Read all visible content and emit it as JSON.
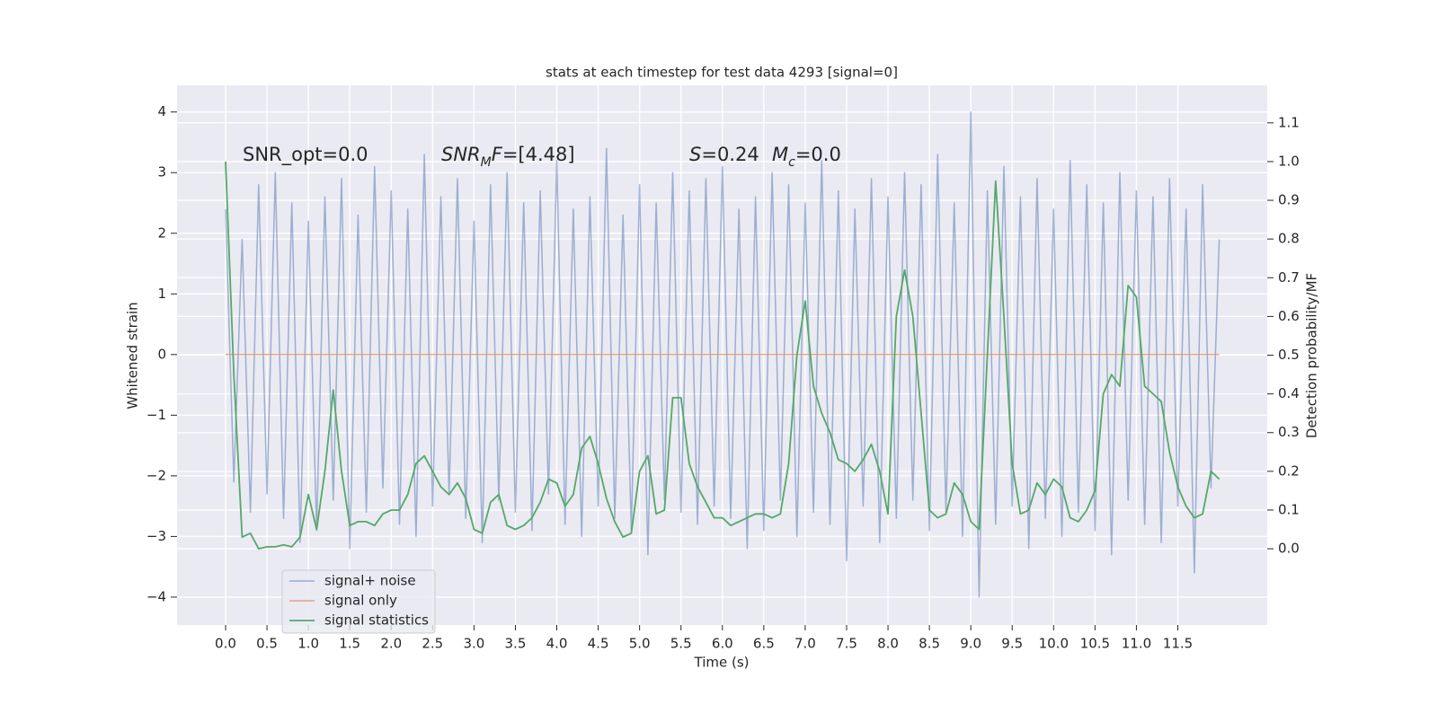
{
  "chart_data": {
    "type": "line",
    "title": "stats at each timestep for test data 4293 [signal=0]",
    "xlabel": "Time (s)",
    "ylabel": "Whitened strain",
    "y2label": "Detection probability/MF",
    "annotations": [
      [
        {
          "text": "SNR_opt=0.0"
        }
      ],
      [
        {
          "text": "SNR",
          "style": "italic"
        },
        {
          "text": "M",
          "style": "sub"
        },
        {
          "text": "F",
          "style": "italic"
        },
        {
          "text": "=[4.48]"
        }
      ],
      [
        {
          "text": "S",
          "style": "italic"
        },
        {
          "text": "=0.24"
        }
      ],
      [
        {
          "text": "M",
          "style": "italic"
        },
        {
          "text": "c",
          "style": "sub"
        },
        {
          "text": "=0.0"
        }
      ]
    ],
    "x": [
      0,
      0.1,
      0.2,
      0.3,
      0.4,
      0.5,
      0.6,
      0.7,
      0.8,
      0.9,
      1,
      1.1,
      1.2,
      1.3,
      1.4,
      1.5,
      1.6,
      1.7,
      1.8,
      1.9,
      2,
      2.1,
      2.2,
      2.3,
      2.4,
      2.5,
      2.6,
      2.7,
      2.8,
      2.9,
      3,
      3.1,
      3.2,
      3.3,
      3.4,
      3.5,
      3.6,
      3.7,
      3.8,
      3.9,
      4,
      4.1,
      4.2,
      4.3,
      4.4,
      4.5,
      4.6,
      4.7,
      4.8,
      4.9,
      5,
      5.1,
      5.2,
      5.3,
      5.4,
      5.5,
      5.6,
      5.7,
      5.8,
      5.9,
      6,
      6.1,
      6.2,
      6.3,
      6.4,
      6.5,
      6.6,
      6.7,
      6.8,
      6.9,
      7,
      7.1,
      7.2,
      7.3,
      7.4,
      7.5,
      7.6,
      7.7,
      7.8,
      7.9,
      8,
      8.1,
      8.2,
      8.3,
      8.4,
      8.5,
      8.6,
      8.7,
      8.8,
      8.9,
      9,
      9.1,
      9.2,
      9.3,
      9.4,
      9.5,
      9.6,
      9.7,
      9.8,
      9.9,
      10,
      10.1,
      10.2,
      10.3,
      10.4,
      10.5,
      10.6,
      10.7,
      10.8,
      10.9,
      11,
      11.1,
      11.2,
      11.3,
      11.4,
      11.5,
      11.6,
      11.7,
      11.8,
      11.9,
      12
    ],
    "series": [
      {
        "name": "signal+ noise",
        "color": "#4c72b0",
        "values": [
          2.4,
          -2.1,
          1.9,
          -2.6,
          2.8,
          -2.3,
          3.0,
          -2.7,
          2.5,
          -3.1,
          2.2,
          -2.9,
          2.6,
          -2.4,
          2.9,
          -3.2,
          2.3,
          -2.6,
          3.1,
          -2.2,
          2.7,
          -2.8,
          2.4,
          -3.0,
          3.3,
          -2.5,
          2.6,
          -2.3,
          2.9,
          -2.7,
          2.2,
          -3.1,
          2.8,
          -2.4,
          3.0,
          -2.6,
          2.5,
          -2.9,
          2.7,
          -2.3,
          3.2,
          -2.8,
          2.4,
          -3.0,
          2.6,
          -2.5,
          3.4,
          -2.7,
          2.3,
          -2.9,
          2.8,
          -3.3,
          2.5,
          -2.4,
          3.0,
          -2.6,
          2.7,
          -2.8,
          2.9,
          -2.5,
          3.1,
          -2.7,
          2.4,
          -3.2,
          2.6,
          -2.9,
          3.0,
          -2.4,
          2.8,
          -3.0,
          2.5,
          -2.6,
          3.2,
          -2.8,
          2.7,
          -3.4,
          2.4,
          -2.5,
          2.9,
          -3.1,
          2.6,
          -2.7,
          3.0,
          -2.4,
          2.8,
          -2.9,
          3.3,
          -2.6,
          2.5,
          -3.0,
          4.0,
          -4.0,
          2.7,
          -2.8,
          3.1,
          -2.5,
          2.6,
          -3.2,
          2.9,
          -2.7,
          2.4,
          -3.0,
          3.2,
          -2.6,
          2.8,
          -2.9,
          2.5,
          -3.3,
          3.0,
          -2.4,
          2.7,
          -2.8,
          2.6,
          -3.1,
          2.9,
          -2.5,
          2.4,
          -3.6,
          2.8,
          -2.2,
          1.9
        ]
      },
      {
        "name": "signal only",
        "color": "#dd8452",
        "x": [
          0,
          12
        ],
        "values": [
          0,
          0
        ]
      },
      {
        "name": "signal statistics",
        "color": "#55a868",
        "axis": "y2",
        "values": [
          1.0,
          0.45,
          0.03,
          0.04,
          0.0,
          0.005,
          0.005,
          0.01,
          0.005,
          0.03,
          0.14,
          0.05,
          0.2,
          0.41,
          0.2,
          0.06,
          0.07,
          0.07,
          0.06,
          0.09,
          0.1,
          0.1,
          0.14,
          0.22,
          0.24,
          0.2,
          0.16,
          0.14,
          0.17,
          0.13,
          0.05,
          0.04,
          0.12,
          0.14,
          0.06,
          0.05,
          0.06,
          0.08,
          0.12,
          0.18,
          0.17,
          0.11,
          0.14,
          0.26,
          0.29,
          0.22,
          0.13,
          0.07,
          0.03,
          0.04,
          0.2,
          0.24,
          0.09,
          0.1,
          0.39,
          0.39,
          0.22,
          0.16,
          0.12,
          0.08,
          0.08,
          0.06,
          0.07,
          0.08,
          0.09,
          0.09,
          0.08,
          0.09,
          0.22,
          0.5,
          0.64,
          0.42,
          0.35,
          0.3,
          0.23,
          0.22,
          0.2,
          0.23,
          0.27,
          0.2,
          0.09,
          0.6,
          0.72,
          0.6,
          0.35,
          0.1,
          0.08,
          0.09,
          0.17,
          0.14,
          0.07,
          0.05,
          0.5,
          0.95,
          0.6,
          0.22,
          0.09,
          0.1,
          0.17,
          0.14,
          0.18,
          0.16,
          0.08,
          0.07,
          0.1,
          0.15,
          0.4,
          0.45,
          0.42,
          0.68,
          0.65,
          0.42,
          0.4,
          0.38,
          0.25,
          0.16,
          0.11,
          0.08,
          0.09,
          0.2,
          0.18
        ]
      }
    ],
    "xlim": [
      -0.586,
      12.58
    ],
    "xticks": [
      {
        "value": 0,
        "label": "0.0"
      },
      {
        "value": 0.5,
        "label": "0.5"
      },
      {
        "value": 1,
        "label": "1.0"
      },
      {
        "value": 1.5,
        "label": "1.5"
      },
      {
        "value": 2,
        "label": "2.0"
      },
      {
        "value": 2.5,
        "label": "2.5"
      },
      {
        "value": 3,
        "label": "3.0"
      },
      {
        "value": 3.5,
        "label": "3.5"
      },
      {
        "value": 4,
        "label": "4.0"
      },
      {
        "value": 4.5,
        "label": "4.5"
      },
      {
        "value": 5,
        "label": "5.0"
      },
      {
        "value": 5.5,
        "label": "5.5"
      },
      {
        "value": 6,
        "label": "6.0"
      },
      {
        "value": 6.5,
        "label": "6.5"
      },
      {
        "value": 7,
        "label": "7.0"
      },
      {
        "value": 7.5,
        "label": "7.5"
      },
      {
        "value": 8,
        "label": "8.0"
      },
      {
        "value": 8.5,
        "label": "8.5"
      },
      {
        "value": 9,
        "label": "9.0"
      },
      {
        "value": 9.5,
        "label": "9.5"
      },
      {
        "value": 10,
        "label": "10.0"
      },
      {
        "value": 10.5,
        "label": "10.5"
      },
      {
        "value": 11,
        "label": "11.0"
      },
      {
        "value": 11.5,
        "label": "11.5"
      }
    ],
    "ylim": [
      -4.46,
      4.44
    ],
    "yticks": [
      {
        "value": -4,
        "label": "−4"
      },
      {
        "value": -3,
        "label": "−3"
      },
      {
        "value": -2,
        "label": "−2"
      },
      {
        "value": -1,
        "label": "−1"
      },
      0,
      1,
      2,
      3,
      4
    ],
    "y2lim": [
      -0.197,
      1.197
    ],
    "y2ticks": [
      {
        "value": 0,
        "label": "0.0"
      },
      0.1,
      0.2,
      0.3,
      0.4,
      0.5,
      0.6,
      0.7,
      0.8,
      0.9,
      {
        "value": 1,
        "label": "1.0"
      },
      1.1
    ],
    "grid": true,
    "legend": "lower left"
  }
}
